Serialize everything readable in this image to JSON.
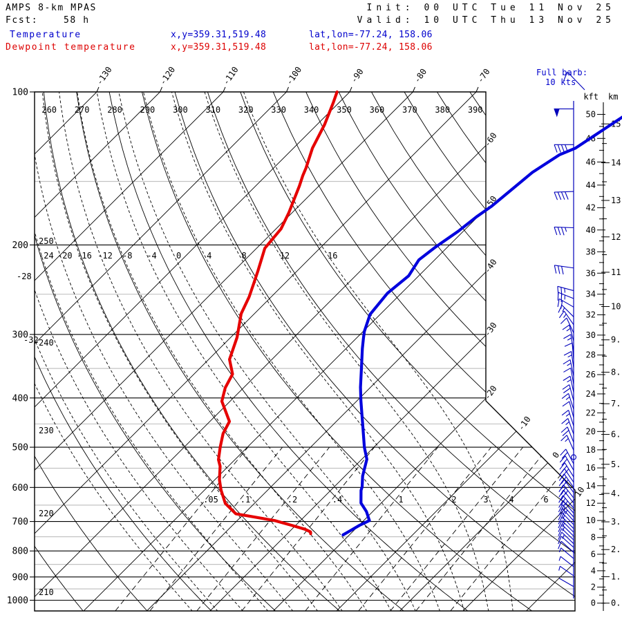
{
  "header": {
    "model": "AMPS 8-km MPAS",
    "fcst_label": "Fcst:",
    "fcst_value": "58 h",
    "init_line": "Init: 00 UTC Tue 11 Nov 25",
    "valid_line": "Valid: 10 UTC Thu 13 Nov 25",
    "series": [
      {
        "name": "Temperature",
        "xy": "x,y=359.31,519.48",
        "latlon": "lat,lon=-77.24, 158.06",
        "color": "#0000cc"
      },
      {
        "name": "Dewpoint temperature",
        "xy": "x,y=359.31,519.48",
        "latlon": "lat,lon=-77.24, 158.06",
        "color": "#dd0000"
      }
    ]
  },
  "barb_legend": {
    "line1": "Full barb:",
    "line2": "10 kts"
  },
  "colors": {
    "temperature_curve": "#0000dd",
    "dewpoint_curve": "#e60000",
    "barbs": "#0000bb",
    "grid_major": "#000000",
    "grid_minor": "#c3c3c3"
  },
  "chart_data": {
    "type": "skewt_log_p",
    "pressure_axis": {
      "unit": "hPa",
      "top": 100,
      "bottom": 1050,
      "major": [
        100,
        200,
        300,
        400,
        500,
        600,
        700,
        800,
        900,
        1000
      ],
      "minor": [
        150,
        250,
        350,
        450,
        550,
        650,
        750,
        850,
        950
      ]
    },
    "isotherms": {
      "unit": "C",
      "step": 10,
      "min": -150,
      "max": 30,
      "top_labels": [
        -130,
        -120,
        -110,
        -100,
        -90,
        -80,
        -70
      ],
      "right_labels": [
        -60,
        -50,
        -40,
        -30,
        -20,
        -10,
        0,
        10
      ]
    },
    "dry_adiabats": {
      "unit": "K",
      "step": 10,
      "min": 210,
      "max": 390,
      "top_labels": [
        260,
        270,
        280,
        290,
        300,
        310,
        320,
        330,
        340,
        350,
        360,
        370,
        380,
        390
      ],
      "left_labels": [
        250,
        240,
        230,
        220,
        210
      ]
    },
    "moist_adiabats": {
      "unit": "C",
      "step": 4,
      "min": -36,
      "max": 16,
      "row_labels": [
        -24,
        -20,
        -16,
        -12,
        -8,
        -4,
        0,
        4,
        8,
        12,
        16
      ],
      "left_labels": [
        -28,
        -32
      ]
    },
    "mixing_ratio": {
      "unit": "g/kg",
      "values": [
        0.05,
        0.1,
        0.2,
        0.4,
        1,
        2,
        3,
        4,
        6
      ],
      "labels": [
        ".05",
        ".1",
        ".2",
        ".4",
        "1",
        "2",
        "3",
        "4",
        "6"
      ]
    },
    "temperature_profile": [
      [
        744,
        -21.0
      ],
      [
        712,
        -19.9
      ],
      [
        697,
        -19.1
      ],
      [
        669,
        -21.0
      ],
      [
        644,
        -23.2
      ],
      [
        608,
        -25.2
      ],
      [
        598,
        -25.6
      ],
      [
        570,
        -27.2
      ],
      [
        528,
        -29.2
      ],
      [
        500,
        -31.5
      ],
      [
        459,
        -34.7
      ],
      [
        405,
        -39.4
      ],
      [
        381,
        -41.6
      ],
      [
        347,
        -44.7
      ],
      [
        320,
        -47.4
      ],
      [
        305,
        -48.9
      ],
      [
        296,
        -49.8
      ],
      [
        274,
        -51.6
      ],
      [
        249,
        -52.2
      ],
      [
        230,
        -51.6
      ],
      [
        214,
        -52.5
      ],
      [
        202,
        -51.9
      ],
      [
        188,
        -50.8
      ],
      [
        176,
        -50.2
      ],
      [
        168,
        -49.5
      ],
      [
        144,
        -48.4
      ],
      [
        133,
        -46.9
      ],
      [
        129,
        -45.4
      ],
      [
        112,
        -42.9
      ]
    ],
    "dewpoint_profile": [
      [
        100,
        -92.0
      ],
      [
        105,
        -90.9
      ],
      [
        116,
        -88.8
      ],
      [
        129,
        -87.0
      ],
      [
        141,
        -84.9
      ],
      [
        146,
        -84.2
      ],
      [
        153,
        -83.1
      ],
      [
        173,
        -80.5
      ],
      [
        186,
        -79.2
      ],
      [
        203,
        -78.7
      ],
      [
        225,
        -76.2
      ],
      [
        238,
        -74.9
      ],
      [
        253,
        -73.5
      ],
      [
        273,
        -72.1
      ],
      [
        304,
        -69.0
      ],
      [
        336,
        -66.7
      ],
      [
        359,
        -63.9
      ],
      [
        382,
        -62.9
      ],
      [
        406,
        -61.3
      ],
      [
        445,
        -56.9
      ],
      [
        470,
        -56.0
      ],
      [
        500,
        -54.3
      ],
      [
        529,
        -52.6
      ],
      [
        545,
        -51.3
      ],
      [
        579,
        -49.3
      ],
      [
        607,
        -47.4
      ],
      [
        645,
        -44.6
      ],
      [
        676,
        -41.3
      ],
      [
        697,
        -34.1
      ],
      [
        712,
        -30.7
      ],
      [
        725,
        -27.9
      ],
      [
        734,
        -26.6
      ],
      [
        740,
        -26.3
      ]
    ],
    "wind_barbs": [
      [
        108,
        50,
        270
      ],
      [
        127,
        40,
        270
      ],
      [
        157,
        40,
        268
      ],
      [
        185,
        35,
        272
      ],
      [
        222,
        30,
        278
      ],
      [
        246,
        25,
        285
      ],
      [
        255,
        25,
        292
      ],
      [
        265,
        20,
        300
      ],
      [
        277,
        15,
        315
      ],
      [
        287,
        15,
        325
      ],
      [
        298,
        10,
        335
      ],
      [
        309,
        15,
        345
      ],
      [
        323,
        15,
        350
      ],
      [
        336,
        10,
        355
      ],
      [
        349,
        15,
        352
      ],
      [
        362,
        15,
        348
      ],
      [
        376,
        10,
        350
      ],
      [
        390,
        15,
        348
      ],
      [
        405,
        20,
        345
      ],
      [
        421,
        15,
        342
      ],
      [
        437,
        10,
        345
      ],
      [
        454,
        15,
        342
      ],
      [
        471,
        15,
        340
      ],
      [
        489,
        20,
        338
      ],
      [
        507,
        15,
        336
      ],
      [
        523,
        0,
        0
      ],
      [
        539,
        20,
        332
      ],
      [
        555,
        20,
        330
      ],
      [
        572,
        25,
        328
      ],
      [
        586,
        20,
        326
      ],
      [
        600,
        25,
        325
      ],
      [
        614,
        20,
        324
      ],
      [
        629,
        25,
        322
      ],
      [
        644,
        20,
        322
      ],
      [
        659,
        25,
        320
      ],
      [
        674,
        20,
        320
      ],
      [
        686,
        25,
        318
      ],
      [
        698,
        20,
        318
      ],
      [
        710,
        15,
        316
      ],
      [
        723,
        20,
        316
      ],
      [
        735,
        15,
        315
      ],
      [
        748,
        15,
        315
      ],
      [
        761,
        10,
        314
      ],
      [
        774,
        15,
        314
      ],
      [
        787,
        10,
        312
      ],
      [
        805,
        10,
        312
      ],
      [
        828,
        5,
        310
      ],
      [
        859,
        5,
        308
      ],
      [
        895,
        5,
        305
      ],
      [
        940,
        3,
        300
      ]
    ],
    "altitude_kft": {
      "title": "kft",
      "min": 0,
      "max": 50,
      "label_step": 2
    },
    "altitude_km": {
      "title": "km",
      "min": 0,
      "max": 15,
      "label_step": 1
    }
  }
}
